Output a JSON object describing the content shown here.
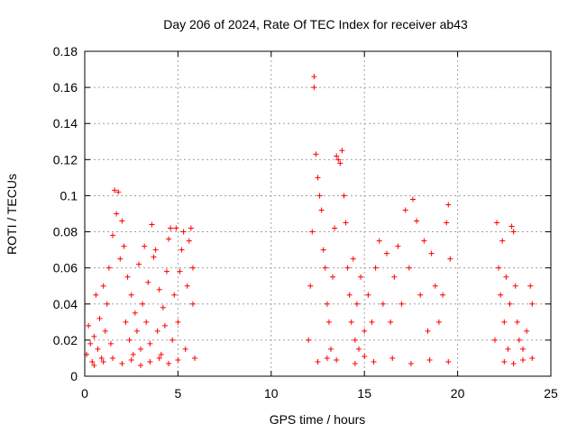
{
  "chart_data": {
    "type": "scatter",
    "title": "Day 206 of 2024, Rate Of TEC Index for receiver ab43",
    "xlabel": "GPS time / hours",
    "ylabel": "ROTI / TECUs",
    "xlim": [
      0,
      25
    ],
    "ylim": [
      0,
      0.18
    ],
    "xticks": [
      0,
      5,
      10,
      15,
      20,
      25
    ],
    "yticks": [
      0,
      0.02,
      0.04,
      0.06,
      0.08,
      0.1,
      0.12,
      0.14,
      0.16,
      0.18
    ],
    "xtick_labels": [
      "0",
      "5",
      "10",
      "15",
      "20",
      "25"
    ],
    "ytick_labels": [
      "0",
      "0.02",
      "0.04",
      "0.06",
      "0.08",
      "0.1",
      "0.12",
      "0.14",
      "0.16",
      "0.18"
    ],
    "grid": true,
    "marker": "+",
    "color": "#ff0000",
    "series": [
      {
        "name": "ROTI",
        "points": [
          [
            0.1,
            0.012
          ],
          [
            0.2,
            0.028
          ],
          [
            0.3,
            0.018
          ],
          [
            0.4,
            0.008
          ],
          [
            0.5,
            0.022
          ],
          [
            0.6,
            0.045
          ],
          [
            0.7,
            0.015
          ],
          [
            0.8,
            0.032
          ],
          [
            0.9,
            0.01
          ],
          [
            1.0,
            0.05
          ],
          [
            1.1,
            0.025
          ],
          [
            1.2,
            0.04
          ],
          [
            1.3,
            0.06
          ],
          [
            1.4,
            0.018
          ],
          [
            1.5,
            0.078
          ],
          [
            1.6,
            0.103
          ],
          [
            1.7,
            0.09
          ],
          [
            1.8,
            0.102
          ],
          [
            1.9,
            0.065
          ],
          [
            2.0,
            0.086
          ],
          [
            2.1,
            0.072
          ],
          [
            2.2,
            0.03
          ],
          [
            2.3,
            0.055
          ],
          [
            2.4,
            0.02
          ],
          [
            2.5,
            0.045
          ],
          [
            2.6,
            0.012
          ],
          [
            2.7,
            0.035
          ],
          [
            2.8,
            0.025
          ],
          [
            2.9,
            0.062
          ],
          [
            3.0,
            0.015
          ],
          [
            3.1,
            0.04
          ],
          [
            3.2,
            0.072
          ],
          [
            3.3,
            0.03
          ],
          [
            3.4,
            0.052
          ],
          [
            3.5,
            0.018
          ],
          [
            3.6,
            0.084
          ],
          [
            3.7,
            0.066
          ],
          [
            3.8,
            0.07
          ],
          [
            3.9,
            0.025
          ],
          [
            4.0,
            0.048
          ],
          [
            4.1,
            0.012
          ],
          [
            4.2,
            0.038
          ],
          [
            4.3,
            0.028
          ],
          [
            4.4,
            0.058
          ],
          [
            4.5,
            0.076
          ],
          [
            4.6,
            0.082
          ],
          [
            4.7,
            0.02
          ],
          [
            4.8,
            0.045
          ],
          [
            4.9,
            0.082
          ],
          [
            5.0,
            0.03
          ],
          [
            5.1,
            0.058
          ],
          [
            5.2,
            0.07
          ],
          [
            5.3,
            0.08
          ],
          [
            5.4,
            0.015
          ],
          [
            5.5,
            0.05
          ],
          [
            5.6,
            0.075
          ],
          [
            5.7,
            0.082
          ],
          [
            5.8,
            0.04
          ],
          [
            5.9,
            0.01
          ],
          [
            5.8,
            0.06
          ],
          [
            0.5,
            0.006
          ],
          [
            1.0,
            0.008
          ],
          [
            1.5,
            0.01
          ],
          [
            2.0,
            0.007
          ],
          [
            2.5,
            0.009
          ],
          [
            3.0,
            0.006
          ],
          [
            3.5,
            0.008
          ],
          [
            4.0,
            0.01
          ],
          [
            4.5,
            0.007
          ],
          [
            5.0,
            0.009
          ],
          [
            12.0,
            0.02
          ],
          [
            12.1,
            0.05
          ],
          [
            12.2,
            0.08
          ],
          [
            12.3,
            0.16
          ],
          [
            12.3,
            0.166
          ],
          [
            12.4,
            0.123
          ],
          [
            12.5,
            0.11
          ],
          [
            12.6,
            0.1
          ],
          [
            12.7,
            0.092
          ],
          [
            12.8,
            0.07
          ],
          [
            12.9,
            0.06
          ],
          [
            13.0,
            0.04
          ],
          [
            13.1,
            0.03
          ],
          [
            13.2,
            0.015
          ],
          [
            13.3,
            0.055
          ],
          [
            13.4,
            0.082
          ],
          [
            13.5,
            0.122
          ],
          [
            13.6,
            0.12
          ],
          [
            13.7,
            0.118
          ],
          [
            13.8,
            0.125
          ],
          [
            13.9,
            0.1
          ],
          [
            14.0,
            0.085
          ],
          [
            14.1,
            0.06
          ],
          [
            14.2,
            0.045
          ],
          [
            14.3,
            0.03
          ],
          [
            14.4,
            0.065
          ],
          [
            14.5,
            0.02
          ],
          [
            14.6,
            0.04
          ],
          [
            14.7,
            0.015
          ],
          [
            14.8,
            0.055
          ],
          [
            15.0,
            0.025
          ],
          [
            15.2,
            0.045
          ],
          [
            15.4,
            0.03
          ],
          [
            15.6,
            0.06
          ],
          [
            15.8,
            0.075
          ],
          [
            16.0,
            0.04
          ],
          [
            16.2,
            0.068
          ],
          [
            16.4,
            0.03
          ],
          [
            16.6,
            0.055
          ],
          [
            16.8,
            0.072
          ],
          [
            17.0,
            0.04
          ],
          [
            17.2,
            0.092
          ],
          [
            17.4,
            0.06
          ],
          [
            17.6,
            0.098
          ],
          [
            17.8,
            0.086
          ],
          [
            18.0,
            0.045
          ],
          [
            18.2,
            0.075
          ],
          [
            18.4,
            0.025
          ],
          [
            18.6,
            0.068
          ],
          [
            18.8,
            0.05
          ],
          [
            19.0,
            0.03
          ],
          [
            19.2,
            0.045
          ],
          [
            19.4,
            0.085
          ],
          [
            19.5,
            0.095
          ],
          [
            19.6,
            0.065
          ],
          [
            12.5,
            0.008
          ],
          [
            13.5,
            0.009
          ],
          [
            14.5,
            0.007
          ],
          [
            15.5,
            0.008
          ],
          [
            16.5,
            0.01
          ],
          [
            17.5,
            0.007
          ],
          [
            18.5,
            0.009
          ],
          [
            19.5,
            0.008
          ],
          [
            13.0,
            0.01
          ],
          [
            15.0,
            0.011
          ],
          [
            22.0,
            0.02
          ],
          [
            22.1,
            0.085
          ],
          [
            22.2,
            0.06
          ],
          [
            22.3,
            0.045
          ],
          [
            22.4,
            0.075
          ],
          [
            22.5,
            0.03
          ],
          [
            22.6,
            0.055
          ],
          [
            22.7,
            0.015
          ],
          [
            22.8,
            0.04
          ],
          [
            22.9,
            0.083
          ],
          [
            23.0,
            0.08
          ],
          [
            23.1,
            0.05
          ],
          [
            23.2,
            0.03
          ],
          [
            23.3,
            0.02
          ],
          [
            23.5,
            0.015
          ],
          [
            23.7,
            0.025
          ],
          [
            23.9,
            0.05
          ],
          [
            24.0,
            0.04
          ],
          [
            22.5,
            0.008
          ],
          [
            23.0,
            0.007
          ],
          [
            23.5,
            0.009
          ],
          [
            24.0,
            0.01
          ]
        ]
      }
    ]
  }
}
